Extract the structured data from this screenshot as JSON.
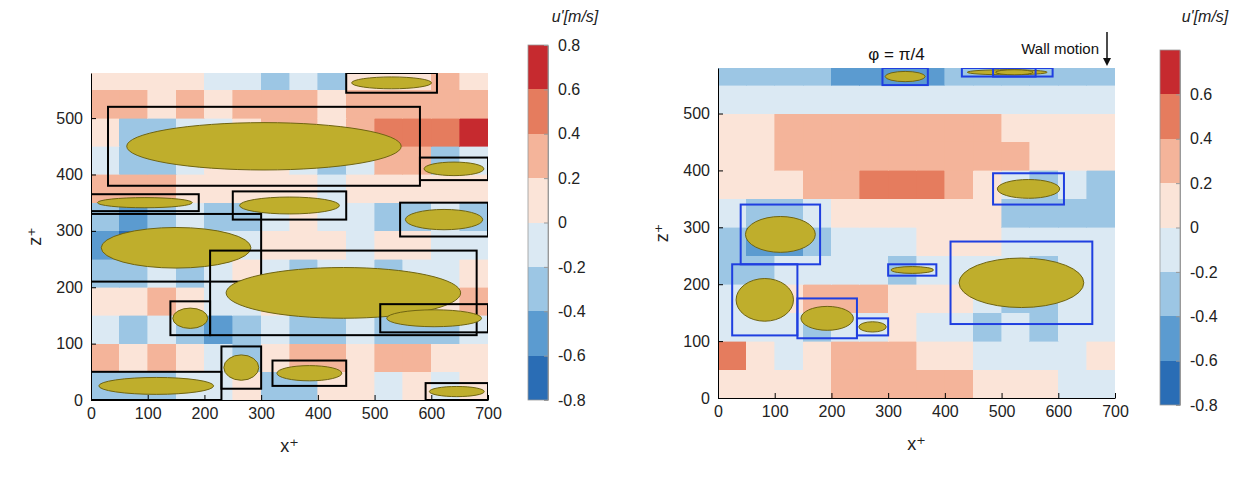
{
  "chart_data": [
    {
      "type": "heatmap",
      "x_label": "x⁺",
      "y_label": "z⁺",
      "xlim": [
        0,
        700
      ],
      "xticks": [
        0,
        100,
        200,
        300,
        400,
        500,
        600,
        700
      ],
      "ylim": [
        0,
        580
      ],
      "yticks": [
        0,
        100,
        200,
        300,
        400,
        500
      ],
      "color": "#000000",
      "cells": {
        "x": [
          0,
          50,
          100,
          150,
          200,
          250,
          300,
          350,
          400,
          450,
          500,
          550,
          600,
          650,
          700
        ],
        "z": [
          0,
          50,
          100,
          150,
          200,
          250,
          300,
          350,
          400,
          450,
          500,
          550,
          580
        ],
        "values": [
          [
            -0.3,
            -0.3,
            -0.3,
            -0.1,
            -0.1,
            0.1,
            -0.3,
            -0.3,
            0.1,
            0.1,
            -0.1,
            0.1,
            -0.1,
            0.1
          ],
          [
            0.3,
            0.1,
            0.3,
            0.1,
            -0.1,
            -0.3,
            0.1,
            0.3,
            0.3,
            0.1,
            0.3,
            0.3,
            0.1,
            0.1
          ],
          [
            -0.1,
            -0.3,
            -0.1,
            -0.3,
            -0.5,
            -0.3,
            -0.1,
            -0.3,
            -0.3,
            -0.1,
            -0.3,
            -0.3,
            -0.3,
            -0.1
          ],
          [
            0.1,
            0.1,
            0.3,
            0.1,
            -0.1,
            -0.1,
            0.1,
            -0.1,
            0.1,
            0.3,
            0.1,
            -0.1,
            0.1,
            0.3
          ],
          [
            -0.3,
            -0.3,
            -0.1,
            -0.3,
            -0.1,
            0.1,
            -0.1,
            -0.3,
            -0.1,
            -0.1,
            -0.3,
            -0.1,
            -0.1,
            0.1
          ],
          [
            -0.5,
            -0.7,
            -0.5,
            -0.3,
            -0.1,
            -0.1,
            0.1,
            0.1,
            0.1,
            -0.1,
            0.1,
            0.1,
            -0.1,
            -0.1
          ],
          [
            -0.3,
            -0.5,
            -0.3,
            -0.1,
            -0.3,
            -0.3,
            -0.1,
            0.1,
            -0.1,
            -0.1,
            -0.3,
            -0.3,
            -0.1,
            -0.3
          ],
          [
            0.3,
            0.3,
            0.3,
            0.1,
            0.1,
            0.1,
            0.1,
            0.1,
            -0.1,
            0.1,
            0.1,
            0.1,
            0.1,
            0.1
          ],
          [
            -0.1,
            -0.3,
            -0.3,
            -0.1,
            0.1,
            0.1,
            0.1,
            -0.1,
            -0.3,
            -0.1,
            0.3,
            0.3,
            -0.3,
            -0.1
          ],
          [
            0.1,
            -0.3,
            -0.3,
            -0.1,
            -0.1,
            0.1,
            0.3,
            0.3,
            0.1,
            0.3,
            0.5,
            0.5,
            0.5,
            0.7
          ],
          [
            0.3,
            0.3,
            0.1,
            0.3,
            0.1,
            0.3,
            0.3,
            0.3,
            0.1,
            0.3,
            0.3,
            0.3,
            0.3,
            0.3
          ],
          [
            0.1,
            0.1,
            0.1,
            0.1,
            -0.1,
            -0.1,
            -0.3,
            -0.1,
            -0.3,
            0.1,
            0.1,
            0.1,
            0.3,
            0.1
          ]
        ]
      },
      "boxes": [
        [
          30,
          580,
          380,
          520
        ],
        [
          450,
          610,
          545,
          580
        ],
        [
          580,
          700,
          390,
          430
        ],
        [
          0,
          190,
          335,
          365
        ],
        [
          250,
          450,
          320,
          370
        ],
        [
          545,
          700,
          290,
          350
        ],
        [
          0,
          300,
          210,
          330
        ],
        [
          210,
          680,
          115,
          265
        ],
        [
          140,
          210,
          115,
          175
        ],
        [
          510,
          700,
          120,
          170
        ],
        [
          0,
          230,
          0,
          50
        ],
        [
          230,
          300,
          20,
          95
        ],
        [
          320,
          450,
          25,
          70
        ],
        [
          590,
          700,
          0,
          30
        ]
      ],
      "colorbar": {
        "label": "u'[m/s]",
        "lim": [
          -0.8,
          0.8
        ],
        "ticks": [
          0.8,
          0.6,
          0.4,
          0.2,
          0,
          -0.2,
          -0.4,
          -0.6,
          -0.8
        ],
        "colors": [
          "#2a6db5",
          "#5b9bd0",
          "#9cc6e4",
          "#dbe9f3",
          "#fbe4d8",
          "#f4b49a",
          "#e57c5e",
          "#c62a2f"
        ]
      }
    },
    {
      "type": "heatmap",
      "title": "φ = π/4",
      "annotations": [
        "Wall motion"
      ],
      "x_label": "x⁺",
      "y_label": "z⁺",
      "xlim": [
        0,
        700
      ],
      "xticks": [
        0,
        100,
        200,
        300,
        400,
        500,
        600,
        700
      ],
      "ylim": [
        0,
        580
      ],
      "yticks": [
        0,
        100,
        200,
        300,
        400,
        500
      ],
      "color": "#1f3fe0",
      "cells": {
        "x": [
          0,
          50,
          100,
          150,
          200,
          250,
          300,
          350,
          400,
          450,
          500,
          550,
          600,
          650,
          700
        ],
        "z": [
          0,
          50,
          100,
          150,
          200,
          250,
          300,
          350,
          400,
          450,
          500,
          550,
          580
        ],
        "values": [
          [
            0.1,
            0.1,
            0.1,
            0.1,
            0.3,
            0.3,
            0.3,
            0.3,
            0.3,
            0.1,
            0.1,
            0.1,
            -0.1,
            -0.1
          ],
          [
            0.5,
            0.1,
            -0.1,
            0.1,
            0.3,
            0.3,
            0.3,
            0.1,
            0.1,
            -0.1,
            -0.1,
            -0.1,
            -0.1,
            0.1
          ],
          [
            -0.1,
            -0.1,
            -0.1,
            -0.3,
            -0.1,
            -0.1,
            0.1,
            -0.1,
            -0.1,
            -0.3,
            -0.1,
            -0.3,
            -0.1,
            -0.1
          ],
          [
            -0.1,
            0.1,
            0.1,
            0.3,
            0.3,
            0.3,
            0.1,
            0.1,
            0.1,
            -0.1,
            -0.3,
            -0.3,
            -0.1,
            -0.1
          ],
          [
            -0.3,
            -0.3,
            -0.1,
            -0.1,
            -0.1,
            -0.1,
            -0.3,
            -0.1,
            -0.1,
            -0.1,
            -0.1,
            -0.3,
            -0.1,
            -0.1
          ],
          [
            -0.3,
            -0.5,
            -0.5,
            -0.3,
            -0.1,
            -0.1,
            -0.1,
            0.1,
            0.1,
            0.1,
            -0.1,
            -0.1,
            -0.1,
            -0.1
          ],
          [
            -0.1,
            -0.3,
            -0.3,
            -0.1,
            0.1,
            0.1,
            0.1,
            0.1,
            0.1,
            0.1,
            -0.3,
            -0.3,
            -0.3,
            -0.3
          ],
          [
            0.1,
            0.1,
            0.1,
            0.3,
            0.3,
            0.5,
            0.5,
            0.5,
            0.3,
            0.1,
            -0.1,
            -0.3,
            -0.1,
            -0.3
          ],
          [
            0.1,
            0.1,
            0.3,
            0.3,
            0.3,
            0.3,
            0.3,
            0.3,
            0.3,
            0.3,
            0.3,
            0.1,
            0.1,
            0.1
          ],
          [
            0.1,
            0.1,
            0.3,
            0.3,
            0.3,
            0.3,
            0.3,
            0.3,
            0.3,
            0.3,
            0.1,
            0.1,
            0.1,
            0.1
          ],
          [
            -0.1,
            -0.1,
            -0.1,
            -0.1,
            -0.1,
            -0.1,
            -0.1,
            -0.1,
            -0.1,
            -0.1,
            -0.1,
            -0.1,
            -0.1,
            -0.1
          ],
          [
            -0.3,
            -0.3,
            -0.3,
            -0.3,
            -0.5,
            -0.5,
            -0.5,
            -0.5,
            -0.3,
            -0.3,
            -0.3,
            -0.3,
            -0.3,
            -0.3
          ]
        ]
      },
      "boxes": [
        [
          40,
          180,
          235,
          340
        ],
        [
          25,
          140,
          110,
          235
        ],
        [
          140,
          245,
          105,
          175
        ],
        [
          245,
          300,
          110,
          140
        ],
        [
          300,
          385,
          215,
          235
        ],
        [
          410,
          660,
          130,
          275
        ],
        [
          485,
          610,
          340,
          395
        ],
        [
          290,
          370,
          550,
          580
        ],
        [
          430,
          590,
          565,
          580
        ],
        [
          485,
          560,
          565,
          580
        ]
      ],
      "colorbar": {
        "label": "u'[m/s]",
        "lim": [
          -0.8,
          0.8
        ],
        "ticks": [
          0.6,
          0.4,
          0.2,
          0,
          -0.2,
          -0.4,
          -0.6,
          -0.8
        ],
        "colors": [
          "#2a6db5",
          "#5b9bd0",
          "#9cc6e4",
          "#dbe9f3",
          "#fbe4d8",
          "#f4b49a",
          "#e57c5e",
          "#c62a2f"
        ]
      }
    }
  ]
}
